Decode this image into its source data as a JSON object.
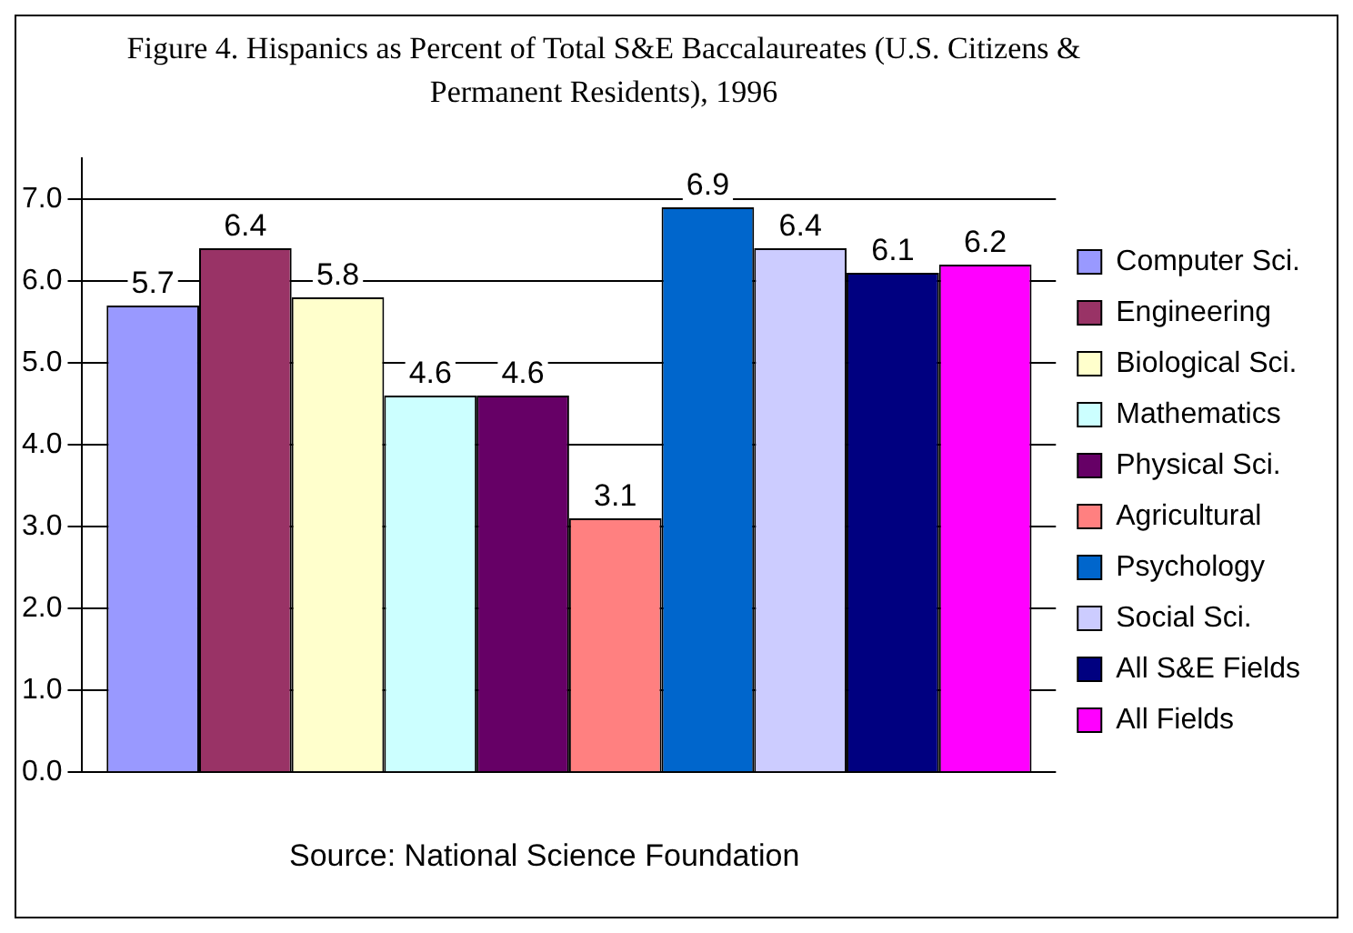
{
  "chart_data": {
    "type": "bar",
    "title": "Figure 4.  Hispanics as Percent of Total S&E Baccalaureates (U.S. Citizens & Permanent Residents), 1996",
    "annotations": [
      "Source:  National Science Foundation"
    ],
    "categories": [
      null
    ],
    "series": [
      {
        "name": "Computer Sci.",
        "color": "#9999ff",
        "values": [
          5.7
        ]
      },
      {
        "name": "Engineering",
        "color": "#993366",
        "values": [
          6.4
        ]
      },
      {
        "name": "Biological Sci.",
        "color": "#ffffcc",
        "values": [
          5.8
        ]
      },
      {
        "name": "Mathematics",
        "color": "#ccffff",
        "values": [
          4.6
        ]
      },
      {
        "name": "Physical Sci.",
        "color": "#660066",
        "values": [
          4.6
        ]
      },
      {
        "name": "Agricultural",
        "color": "#ff8080",
        "values": [
          3.1
        ]
      },
      {
        "name": "Psychology",
        "color": "#0066cc",
        "values": [
          6.9
        ]
      },
      {
        "name": "Social Sci.",
        "color": "#ccccff",
        "values": [
          6.4
        ]
      },
      {
        "name": "All S&E Fields",
        "color": "#000080",
        "values": [
          6.1
        ]
      },
      {
        "name": "All Fields",
        "color": "#ff00ff",
        "values": [
          6.2
        ]
      }
    ],
    "ylim": [
      0,
      7.5
    ],
    "yticks": [
      {
        "value": 0,
        "label": "0.0"
      },
      {
        "value": 1,
        "label": "1.0"
      },
      {
        "value": 2,
        "label": "2.0"
      },
      {
        "value": 3,
        "label": "3.0"
      },
      {
        "value": 4,
        "label": "4.0"
      },
      {
        "value": 5,
        "label": "5.0"
      },
      {
        "value": 6,
        "label": "6.0"
      },
      {
        "value": 7,
        "label": "7.0"
      }
    ],
    "grid": "y",
    "legend": "right",
    "data_labels": true
  }
}
